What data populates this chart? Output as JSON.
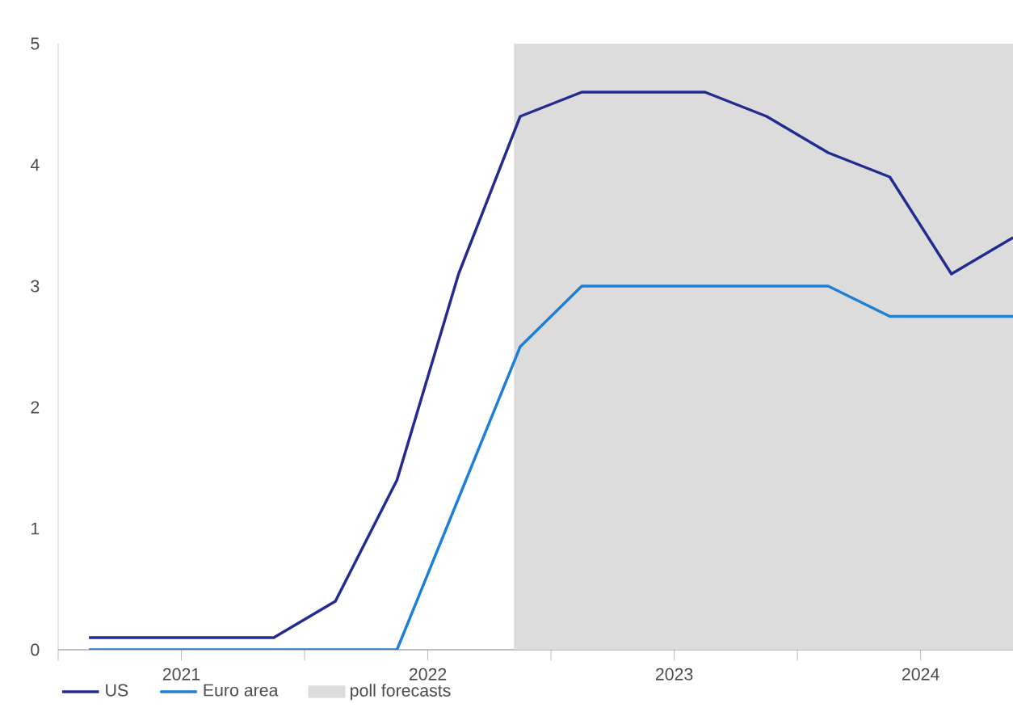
{
  "chart_data": {
    "type": "line",
    "x": [
      2021.125,
      2021.375,
      2021.625,
      2021.875,
      2022.125,
      2022.375,
      2022.625,
      2022.875,
      2023.125,
      2023.375,
      2023.625,
      2023.875,
      2024.125,
      2024.375,
      2024.625,
      2024.875
    ],
    "series": [
      {
        "name": "US",
        "color": "#232b8f",
        "values": [
          0.1,
          0.1,
          0.1,
          0.1,
          0.4,
          1.4,
          3.1,
          4.4,
          4.6,
          4.6,
          4.6,
          4.4,
          4.1,
          3.9,
          3.1,
          3.4
        ]
      },
      {
        "name": "Euro area",
        "color": "#1f7fd4",
        "values": [
          0,
          0,
          0,
          0,
          0,
          0,
          1.25,
          2.5,
          3,
          3,
          3,
          3,
          3,
          2.75,
          2.75,
          2.75
        ]
      }
    ],
    "xlim": [
      2021,
      2024.875
    ],
    "xticks": [
      {
        "value": 2021,
        "label": null
      },
      {
        "value": 2021.5,
        "label": "2021"
      },
      {
        "value": 2022,
        "label": null
      },
      {
        "value": 2022.5,
        "label": "2022"
      },
      {
        "value": 2023,
        "label": null
      },
      {
        "value": 2023.5,
        "label": "2023"
      },
      {
        "value": 2024,
        "label": null
      },
      {
        "value": 2024.5,
        "label": "2024"
      }
    ],
    "ylim": [
      0,
      5
    ],
    "yticks": [
      0,
      1,
      2,
      3,
      4,
      5
    ],
    "bands": [
      {
        "axis": "x",
        "from": 2022.85,
        "to": 2024.875,
        "label": "poll forecasts",
        "color": "#dcdcdc"
      }
    ],
    "legend": "bottom",
    "grid": false,
    "marker": "none",
    "line_style": "solid"
  }
}
